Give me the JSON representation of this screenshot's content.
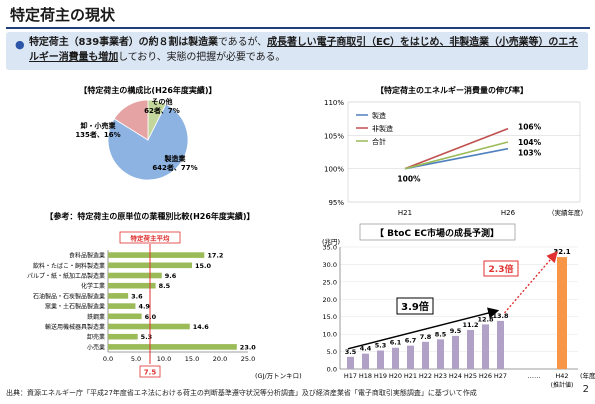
{
  "page": {
    "title": "特定荷主の現状",
    "summary": [
      {
        "t": "特定荷主（839事業者）の約８割は製造業",
        "b": true,
        "u": false
      },
      {
        "t": "であるが、",
        "b": false,
        "u": false
      },
      {
        "t": "成長著しい電子商取引（EC）をはじめ、非製造業（小売業等）のエネルギー消費量も増加",
        "b": true,
        "u": true
      },
      {
        "t": "しており、実態の把握が必要である。",
        "b": false,
        "u": false
      }
    ],
    "footer": "出典：資源エネルギー庁「平成27年度省エネ法における荷主の判断基準遵守状況等分析調査」及び経済産業省「電子商取引実態調査」に基づいて作成",
    "page_number": "2"
  },
  "chart_data": [
    {
      "type": "pie",
      "title": "【特定荷主の構成比(H26年度実績)】",
      "slices": [
        {
          "label": "製造業",
          "count": "642者",
          "pct": 77,
          "value": 642,
          "color": "#8db3e2"
        },
        {
          "label": "卸・小売業",
          "count": "135者",
          "pct": 16,
          "value": 135,
          "color": "#e6a3a3"
        },
        {
          "label": "その他",
          "count": "62者",
          "pct": 7,
          "value": 62,
          "color": "#c3d69b"
        }
      ]
    },
    {
      "type": "line",
      "title": "【特定荷主のエネルギー消費量の伸び率】",
      "categories": [
        "H21",
        "H26"
      ],
      "xlabel": "（実績年度）",
      "ylim": [
        95,
        110
      ],
      "yticks": [
        "95%",
        "100%",
        "105%",
        "110%"
      ],
      "start_label": "100%",
      "series": [
        {
          "name": "製造",
          "values": [
            100,
            103
          ],
          "label": "103%",
          "color": "#4f81bd"
        },
        {
          "name": "非製造",
          "values": [
            100,
            106
          ],
          "label": "106%",
          "color": "#c0504d"
        },
        {
          "name": "合計",
          "values": [
            100,
            104
          ],
          "label": "104%",
          "color": "#9bbb59"
        }
      ]
    },
    {
      "type": "bar",
      "orientation": "horizontal",
      "title": "【参考：特定荷主の原単位の業種別比較(H26年度実績)】",
      "categories": [
        "食料品製造業",
        "飲料・たばこ・飼料製造業",
        "パルプ・紙・紙加工品製造業",
        "化学工業",
        "石油製品・石炭製品製造業",
        "窯業・土石製品製造業",
        "鉄鋼業",
        "輸送用機械器具製造業",
        "卸売業",
        "小売業"
      ],
      "values": [
        17.2,
        15.0,
        9.6,
        8.5,
        3.6,
        4.9,
        6.0,
        14.6,
        5.3,
        23.0
      ],
      "value_labels": [
        "17.2",
        "15.0",
        "9.6",
        "8.5",
        "3.6",
        "4.9",
        "6.0",
        "14.6",
        "5.3",
        "23.0"
      ],
      "xlim": [
        0,
        25
      ],
      "xticks": [
        "0.0",
        "5.0",
        "10.0",
        "15.0",
        "20.0",
        "25.0"
      ],
      "xlabel": "(GJ/万トンキロ)",
      "average": 7.5,
      "average_label": "特定荷主平均",
      "average_value_label": "7.5",
      "color": "#9bbb59"
    },
    {
      "type": "bar",
      "title": "【 BtoC EC市場の成長予測】",
      "ylabel": "(兆円)",
      "ylim": [
        0,
        35
      ],
      "yticks": [
        "0.0",
        "5.0",
        "10.0",
        "15.0",
        "20.0",
        "25.0",
        "30.0",
        "35.0"
      ],
      "categories": [
        "H17",
        "H18",
        "H19",
        "H20",
        "H21",
        "H22",
        "H23",
        "H24",
        "H25",
        "H26",
        "H27"
      ],
      "values": [
        3.5,
        4.4,
        5.3,
        6.1,
        6.7,
        7.8,
        8.5,
        9.5,
        11.2,
        12.8,
        13.8
      ],
      "value_labels": [
        "3.5",
        "4.4",
        "5.3",
        "6.1",
        "6.7",
        "7.8",
        "8.5",
        "9.5",
        "11.2",
        "12.8",
        "13.8"
      ],
      "gap_label": "……",
      "forecast": {
        "category": "H42",
        "value": 32.1,
        "label": "32.1",
        "note": "(推計値)"
      },
      "xlabel": "(年度)",
      "growth_label": "3.9倍",
      "forecast_growth_label": "2.3倍",
      "color": "#b2a1c7",
      "forecast_color": "#f79646"
    }
  ]
}
